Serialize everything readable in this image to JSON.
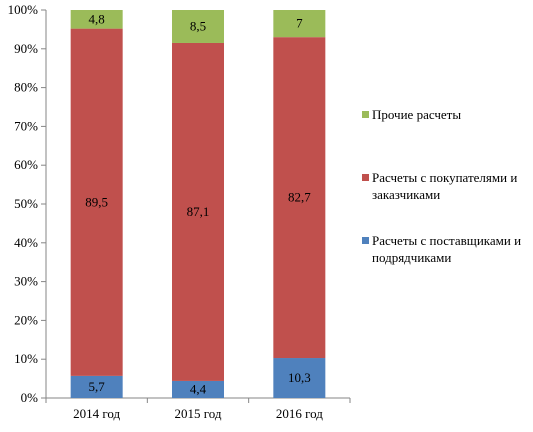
{
  "chart_data": {
    "type": "bar",
    "stacked": true,
    "percent": true,
    "categories": [
      "2014 год",
      "2015 год",
      "2016 год"
    ],
    "series": [
      {
        "name": "Расчеты с поставщиками и подрядчиками",
        "values": [
          5.7,
          4.4,
          10.3
        ],
        "labels": [
          "5,7",
          "4,4",
          "10,3"
        ],
        "color": "#4F81BD"
      },
      {
        "name": "Расчеты с покупателями и заказчиками",
        "values": [
          89.5,
          87.1,
          82.7
        ],
        "labels": [
          "89,5",
          "87,1",
          "82,7"
        ],
        "color": "#C0504D"
      },
      {
        "name": "Прочие расчеты",
        "values": [
          4.8,
          8.5,
          7.0
        ],
        "labels": [
          "4,8",
          "8,5",
          "7"
        ],
        "color": "#9BBB59"
      }
    ],
    "yticks": [
      "0%",
      "10%",
      "20%",
      "30%",
      "40%",
      "50%",
      "60%",
      "70%",
      "80%",
      "90%",
      "100%"
    ],
    "ylim": [
      0,
      100
    ],
    "grid": false,
    "legend_position": "right",
    "legend_order": [
      "Прочие расчеты",
      "Расчеты с покупателями и заказчиками",
      "Расчеты с поставщиками и подрядчиками"
    ]
  }
}
